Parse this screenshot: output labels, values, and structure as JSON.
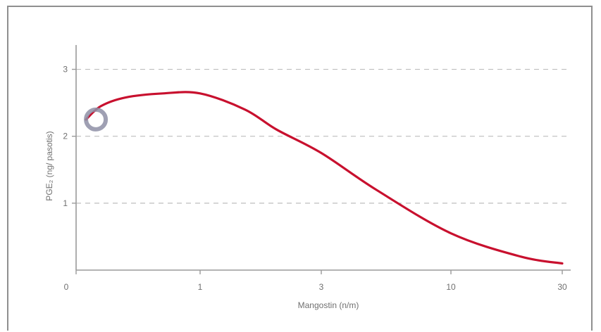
{
  "chart_data": {
    "type": "line",
    "title": "",
    "xlabel": "Mangostin (n/m)",
    "ylabel": "PGE₂ (ng/ pasotis)",
    "x_ticks": [
      {
        "label": "0",
        "value": 0
      },
      {
        "label": "1",
        "value": 1
      },
      {
        "label": "3",
        "value": 3
      },
      {
        "label": "10",
        "value": 10
      },
      {
        "label": "30",
        "value": 30
      }
    ],
    "y_ticks": [
      {
        "label": "1",
        "value": 1
      },
      {
        "label": "2",
        "value": 2
      },
      {
        "label": "3",
        "value": 3
      }
    ],
    "ylim": [
      0,
      3.3
    ],
    "grid": true,
    "series": [
      {
        "color": "#c8102e",
        "x": [
          0.08,
          0.2,
          0.4,
          0.7,
          1.0,
          1.5,
          2.0,
          3.0,
          5.0,
          10.0,
          20.0,
          30.0
        ],
        "values": [
          2.25,
          2.45,
          2.58,
          2.64,
          2.64,
          2.4,
          2.1,
          1.75,
          1.2,
          0.55,
          0.2,
          0.1
        ]
      }
    ],
    "highlight_marker": {
      "x": 0.08,
      "y": 2.25,
      "color": "#8e8fa6"
    }
  }
}
